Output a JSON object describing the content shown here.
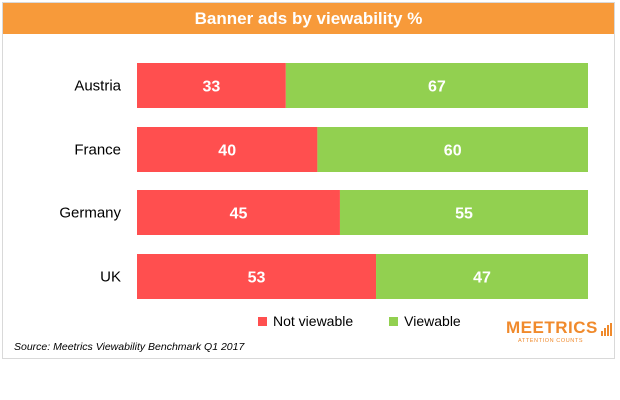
{
  "chart_data": {
    "type": "bar",
    "orientation": "horizontal",
    "stacked": true,
    "title": "Banner ads by viewability %",
    "categories": [
      "Austria",
      "France",
      "Germany",
      "UK"
    ],
    "series": [
      {
        "name": "Not viewable",
        "values": [
          33,
          40,
          45,
          53
        ],
        "color": "#ff4f4f"
      },
      {
        "name": "Viewable",
        "values": [
          67,
          60,
          55,
          47
        ],
        "color": "#92d050"
      }
    ],
    "xlim": [
      0,
      100
    ],
    "grid": false,
    "legend_position": "bottom",
    "data_labels": true
  },
  "source": "Source: Meetrics Viewability Benchmark Q1 2017",
  "logo": {
    "name": "MEETRICS",
    "tagline": "ATTENTION COUNTS",
    "color": "#f08a2c"
  },
  "colors": {
    "title_bar": "#f79a3a",
    "title_text": "#ffffff",
    "label_text": "#ffffff"
  }
}
